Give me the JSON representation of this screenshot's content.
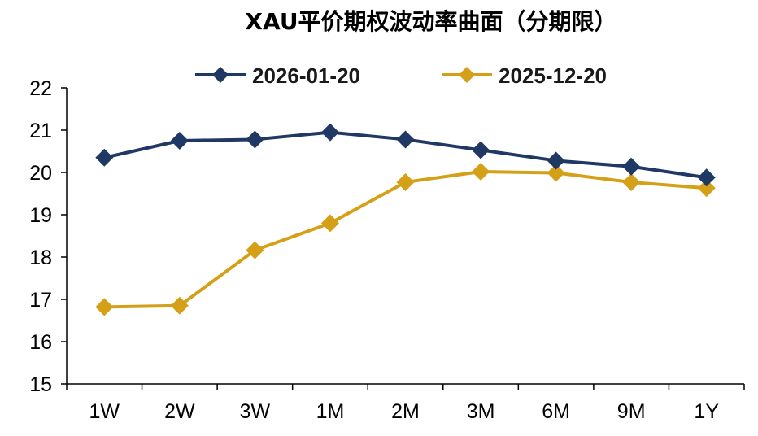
{
  "chart_data": {
    "type": "line",
    "title": "XAU平价期权波动率曲面（分期限）",
    "xlabel": "",
    "ylabel": "",
    "categories": [
      "1W",
      "2W",
      "3W",
      "1M",
      "2M",
      "3M",
      "6M",
      "9M",
      "1Y"
    ],
    "ylim": [
      15,
      22
    ],
    "yticks": [
      15,
      16,
      17,
      18,
      19,
      20,
      21,
      22
    ],
    "grid": false,
    "legend_position": "top",
    "series": [
      {
        "name": "2026-01-20",
        "color": "#1F3864",
        "marker": "diamond",
        "values": [
          20.35,
          20.75,
          20.78,
          20.95,
          20.78,
          20.53,
          20.28,
          20.14,
          19.88
        ]
      },
      {
        "name": "2025-12-20",
        "color": "#D4A017",
        "marker": "diamond",
        "values": [
          16.82,
          16.85,
          18.16,
          18.8,
          19.77,
          20.02,
          19.99,
          19.77,
          19.63
        ]
      }
    ]
  }
}
